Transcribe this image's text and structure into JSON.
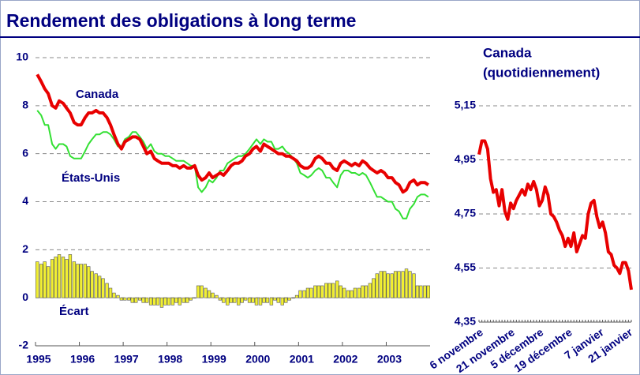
{
  "title": "Rendement des obligations à long terme",
  "chart_data": [
    {
      "type": "line",
      "xlim": [
        1995,
        2004
      ],
      "xticks": [
        1995,
        1996,
        1997,
        1998,
        1999,
        2000,
        2001,
        2002,
        2003
      ],
      "ylim": [
        -2,
        10
      ],
      "yticks": [
        -2,
        0,
        2,
        4,
        6,
        8,
        10
      ],
      "grid": true,
      "x": [
        1995.04,
        1995.13,
        1995.21,
        1995.29,
        1995.38,
        1995.46,
        1995.54,
        1995.63,
        1995.71,
        1995.79,
        1995.88,
        1995.96,
        1996.04,
        1996.13,
        1996.21,
        1996.29,
        1996.38,
        1996.46,
        1996.54,
        1996.63,
        1996.71,
        1996.79,
        1996.88,
        1996.96,
        1997.04,
        1997.13,
        1997.21,
        1997.29,
        1997.38,
        1997.46,
        1997.54,
        1997.63,
        1997.71,
        1997.79,
        1997.88,
        1997.96,
        1998.04,
        1998.13,
        1998.21,
        1998.29,
        1998.38,
        1998.46,
        1998.54,
        1998.63,
        1998.71,
        1998.79,
        1998.88,
        1998.96,
        1999.04,
        1999.13,
        1999.21,
        1999.29,
        1999.38,
        1999.46,
        1999.54,
        1999.63,
        1999.71,
        1999.79,
        1999.88,
        1999.96,
        2000.04,
        2000.13,
        2000.21,
        2000.29,
        2000.38,
        2000.46,
        2000.54,
        2000.63,
        2000.71,
        2000.79,
        2000.88,
        2000.96,
        2001.04,
        2001.13,
        2001.21,
        2001.29,
        2001.38,
        2001.46,
        2001.54,
        2001.63,
        2001.71,
        2001.79,
        2001.88,
        2001.96,
        2002.04,
        2002.13,
        2002.21,
        2002.29,
        2002.38,
        2002.46,
        2002.54,
        2002.63,
        2002.71,
        2002.79,
        2002.88,
        2002.96,
        2003.04,
        2003.13,
        2003.21,
        2003.29,
        2003.38,
        2003.46,
        2003.54,
        2003.63,
        2003.71,
        2003.79,
        2003.88,
        2003.96
      ],
      "series": [
        {
          "name": "Écart",
          "type": "bar",
          "color": "#f2f032",
          "values": [
            1.5,
            1.4,
            1.5,
            1.3,
            1.6,
            1.7,
            1.8,
            1.7,
            1.6,
            1.8,
            1.5,
            1.4,
            1.4,
            1.4,
            1.3,
            1.1,
            1.0,
            0.9,
            0.8,
            0.6,
            0.4,
            0.2,
            0.1,
            -0.1,
            -0.1,
            -0.1,
            -0.2,
            -0.2,
            -0.1,
            -0.2,
            -0.2,
            -0.3,
            -0.3,
            -0.3,
            -0.4,
            -0.3,
            -0.3,
            -0.3,
            -0.2,
            -0.3,
            -0.2,
            -0.2,
            -0.1,
            0.0,
            0.5,
            0.5,
            0.4,
            0.3,
            0.2,
            0.1,
            -0.1,
            -0.2,
            -0.3,
            -0.2,
            -0.2,
            -0.3,
            -0.2,
            -0.1,
            -0.2,
            -0.2,
            -0.3,
            -0.3,
            -0.2,
            -0.2,
            -0.3,
            -0.1,
            -0.2,
            -0.3,
            -0.2,
            -0.1,
            0.0,
            0.1,
            0.3,
            0.3,
            0.4,
            0.4,
            0.5,
            0.5,
            0.5,
            0.6,
            0.6,
            0.6,
            0.7,
            0.5,
            0.4,
            0.3,
            0.3,
            0.4,
            0.4,
            0.5,
            0.5,
            0.6,
            0.8,
            1.0,
            1.1,
            1.1,
            1.0,
            1.0,
            1.1,
            1.1,
            1.1,
            1.2,
            1.1,
            1.0,
            0.5,
            0.5,
            0.5,
            0.5
          ]
        },
        {
          "name": "États-Unis",
          "type": "line",
          "color": "#33e033",
          "values": [
            7.8,
            7.6,
            7.2,
            7.2,
            6.4,
            6.2,
            6.4,
            6.4,
            6.3,
            5.9,
            5.8,
            5.8,
            5.8,
            6.1,
            6.4,
            6.6,
            6.8,
            6.8,
            6.9,
            6.9,
            6.8,
            6.6,
            6.3,
            6.3,
            6.6,
            6.7,
            6.9,
            6.9,
            6.7,
            6.5,
            6.2,
            6.4,
            6.1,
            6.0,
            6.0,
            5.9,
            5.9,
            5.8,
            5.7,
            5.7,
            5.7,
            5.6,
            5.5,
            5.5,
            4.6,
            4.4,
            4.6,
            4.9,
            4.8,
            5.0,
            5.3,
            5.3,
            5.6,
            5.7,
            5.8,
            5.9,
            5.9,
            6.0,
            6.2,
            6.4,
            6.6,
            6.4,
            6.6,
            6.5,
            6.5,
            6.2,
            6.2,
            6.3,
            6.1,
            6.0,
            5.8,
            5.6,
            5.2,
            5.1,
            5.0,
            5.1,
            5.3,
            5.4,
            5.3,
            5.0,
            5.0,
            4.8,
            4.6,
            5.1,
            5.3,
            5.3,
            5.2,
            5.2,
            5.1,
            5.2,
            5.1,
            4.8,
            4.5,
            4.2,
            4.2,
            4.1,
            4.0,
            4.0,
            3.7,
            3.6,
            3.3,
            3.3,
            3.7,
            3.9,
            4.2,
            4.3,
            4.3,
            4.2
          ]
        },
        {
          "name": "Canada",
          "type": "line",
          "color": "#e80000",
          "values": [
            9.3,
            9.0,
            8.7,
            8.5,
            8.0,
            7.9,
            8.2,
            8.1,
            7.9,
            7.7,
            7.3,
            7.2,
            7.2,
            7.5,
            7.7,
            7.7,
            7.8,
            7.7,
            7.7,
            7.5,
            7.2,
            6.8,
            6.4,
            6.2,
            6.5,
            6.6,
            6.7,
            6.7,
            6.6,
            6.3,
            6.0,
            6.1,
            5.8,
            5.7,
            5.6,
            5.6,
            5.6,
            5.5,
            5.5,
            5.4,
            5.5,
            5.4,
            5.4,
            5.5,
            5.1,
            4.9,
            5.0,
            5.2,
            5.0,
            5.1,
            5.2,
            5.1,
            5.3,
            5.5,
            5.6,
            5.6,
            5.7,
            5.9,
            6.0,
            6.2,
            6.3,
            6.1,
            6.4,
            6.3,
            6.2,
            6.1,
            6.0,
            6.0,
            5.9,
            5.9,
            5.8,
            5.7,
            5.5,
            5.4,
            5.4,
            5.5,
            5.8,
            5.9,
            5.8,
            5.6,
            5.6,
            5.4,
            5.3,
            5.6,
            5.7,
            5.6,
            5.5,
            5.6,
            5.5,
            5.7,
            5.6,
            5.4,
            5.3,
            5.2,
            5.3,
            5.2,
            5.0,
            5.0,
            4.8,
            4.7,
            4.4,
            4.5,
            4.8,
            4.9,
            4.7,
            4.8,
            4.8,
            4.7
          ]
        }
      ]
    },
    {
      "type": "line",
      "title": "Canada",
      "subtitle": "(quotidiennement)",
      "color": "#e80000",
      "ylim": [
        4.35,
        5.15
      ],
      "yticks": [
        {
          "value": 4.35,
          "label": "4,35"
        },
        {
          "value": 4.55,
          "label": "4,55"
        },
        {
          "value": 4.75,
          "label": "4,75"
        },
        {
          "value": 4.95,
          "label": "4,95"
        },
        {
          "value": 5.15,
          "label": "5,15"
        }
      ],
      "grid": true,
      "categories": [
        "6 novembre",
        null,
        null,
        null,
        null,
        null,
        null,
        null,
        null,
        null,
        null,
        "21 novembre",
        null,
        null,
        null,
        null,
        null,
        null,
        null,
        null,
        null,
        "5 décembre",
        null,
        null,
        null,
        null,
        null,
        null,
        null,
        null,
        null,
        "19 décembre",
        null,
        null,
        null,
        null,
        null,
        null,
        null,
        null,
        null,
        null,
        "7 janvier",
        null,
        null,
        null,
        null,
        null,
        null,
        null,
        null,
        null,
        "21 janvier",
        null
      ],
      "values": [
        4.97,
        5.02,
        5.02,
        4.99,
        4.88,
        4.83,
        4.84,
        4.78,
        4.84,
        4.76,
        4.73,
        4.79,
        4.77,
        4.8,
        4.82,
        4.84,
        4.82,
        4.86,
        4.84,
        4.87,
        4.84,
        4.78,
        4.8,
        4.85,
        4.82,
        4.75,
        4.74,
        4.72,
        4.69,
        4.67,
        4.63,
        4.66,
        4.63,
        4.68,
        4.61,
        4.64,
        4.67,
        4.66,
        4.75,
        4.79,
        4.8,
        4.74,
        4.7,
        4.72,
        4.68,
        4.61,
        4.6,
        4.56,
        4.55,
        4.53,
        4.57,
        4.57,
        4.54,
        4.47
      ]
    }
  ]
}
